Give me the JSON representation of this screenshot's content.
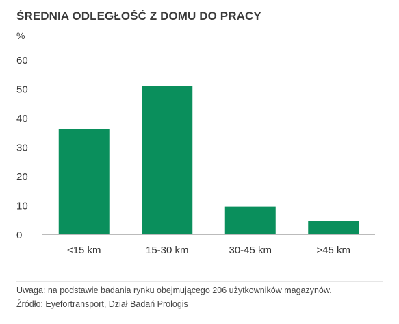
{
  "chart_data": {
    "type": "bar",
    "title": "ŚREDNIA ODLEGŁOŚĆ Z DOMU DO PRACY",
    "ylabel": "%",
    "xlabel": "",
    "categories": [
      "<15 km",
      "15-30 km",
      "30-45 km",
      ">45 km"
    ],
    "values": [
      36,
      51,
      9.5,
      4.5
    ],
    "ylim": [
      0,
      60
    ],
    "yticks": [
      0,
      10,
      20,
      30,
      40,
      50,
      60
    ],
    "grid": false,
    "bar_color": "#0a8f5c",
    "axis_color": "#bbbbbb"
  },
  "notes": {
    "line1": "Uwaga: na podstawie badania rynku obejmującego 206 użytkowników magazynów.",
    "line2": "Źródło: Eyefortransport, Dział Badań Prologis"
  }
}
